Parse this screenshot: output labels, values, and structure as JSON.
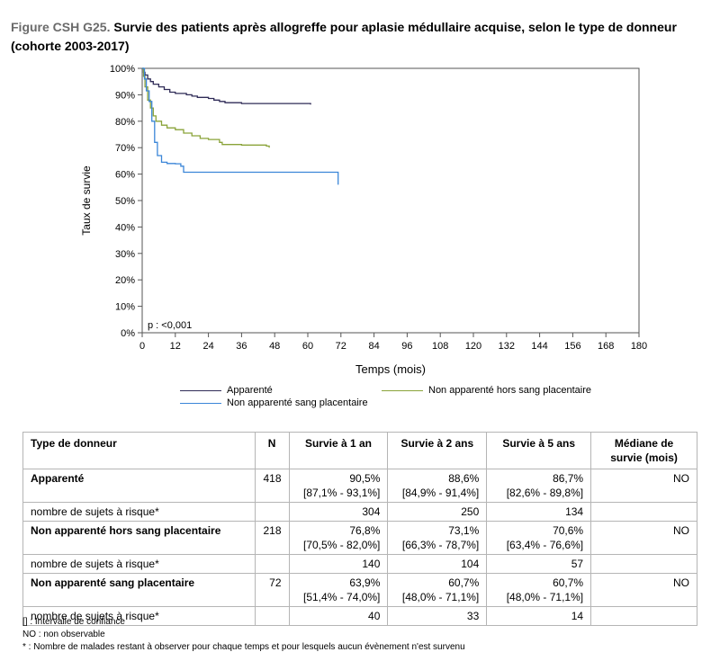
{
  "title": {
    "prefix": "Figure CSH G25.",
    "text": "Survie des patients après allogreffe pour aplasie médullaire acquise, selon le type de donneur (cohorte 2003-2017)"
  },
  "chart_data": {
    "type": "line",
    "xlabel": "Temps (mois)",
    "ylabel": "Taux de survie",
    "xlim": [
      0,
      180
    ],
    "ylim": [
      0,
      100
    ],
    "x_ticks": [
      "0",
      "12",
      "24",
      "36",
      "48",
      "60",
      "72",
      "84",
      "96",
      "108",
      "120",
      "132",
      "144",
      "156",
      "168",
      "180"
    ],
    "y_ticks": [
      "0%",
      "10%",
      "20%",
      "30%",
      "40%",
      "50%",
      "60%",
      "70%",
      "80%",
      "90%",
      "100%"
    ],
    "annotation": "p : <0,001",
    "legend_position": "bottom",
    "series": [
      {
        "name": "Apparenté",
        "color": "#2f2b57",
        "points": [
          [
            0,
            100
          ],
          [
            0.5,
            98.5
          ],
          [
            1,
            97.5
          ],
          [
            2,
            96
          ],
          [
            3,
            95
          ],
          [
            4,
            94
          ],
          [
            6,
            93
          ],
          [
            8,
            92
          ],
          [
            10,
            91
          ],
          [
            12,
            90.5
          ],
          [
            16,
            90
          ],
          [
            18,
            89.5
          ],
          [
            20,
            89
          ],
          [
            24,
            88.6
          ],
          [
            26,
            88
          ],
          [
            28,
            87.5
          ],
          [
            30,
            87
          ],
          [
            36,
            86.7
          ],
          [
            60,
            86.7
          ],
          [
            61,
            86.3
          ]
        ]
      },
      {
        "name": "Non apparenté hors sang placentaire",
        "color": "#8aa339",
        "points": [
          [
            0,
            100
          ],
          [
            0.5,
            97
          ],
          [
            1,
            93
          ],
          [
            2,
            88
          ],
          [
            3,
            85
          ],
          [
            4,
            82
          ],
          [
            5,
            80
          ],
          [
            7,
            78.5
          ],
          [
            9,
            77.5
          ],
          [
            12,
            76.8
          ],
          [
            15,
            75.5
          ],
          [
            18,
            74.5
          ],
          [
            21,
            73.5
          ],
          [
            24,
            73.1
          ],
          [
            28,
            72
          ],
          [
            29,
            71.2
          ],
          [
            36,
            71
          ],
          [
            45,
            70.6
          ],
          [
            46,
            70
          ]
        ]
      },
      {
        "name": "Non apparenté sang placentaire",
        "color": "#3b86d8",
        "points": [
          [
            0,
            100
          ],
          [
            0.8,
            96
          ],
          [
            1.5,
            91.5
          ],
          [
            2.5,
            87.5
          ],
          [
            3.5,
            80
          ],
          [
            4.5,
            72
          ],
          [
            5.5,
            67
          ],
          [
            7,
            64.5
          ],
          [
            9,
            64
          ],
          [
            12,
            63.9
          ],
          [
            14,
            63
          ],
          [
            15,
            60.7
          ],
          [
            24,
            60.7
          ],
          [
            60,
            60.7
          ],
          [
            64,
            60.7
          ],
          [
            65,
            60.7
          ],
          [
            71,
            56
          ]
        ]
      }
    ]
  },
  "table": {
    "headers": {
      "type": "Type de donneur",
      "n": "N",
      "s1": "Survie à 1 an",
      "s2": "Survie à 2 ans",
      "s5": "Survie à 5 ans",
      "median": "Médiane de survie (mois)"
    },
    "rows": [
      {
        "label": "Apparenté",
        "n": "418",
        "s1": "90,5%",
        "s1ci": "[87,1% - 93,1%]",
        "s2": "88,6%",
        "s2ci": "[84,9% - 91,4%]",
        "s5": "86,7%",
        "s5ci": "[82,6% - 89,8%]",
        "median": "NO"
      },
      {
        "label": "nombre de sujets à risque*",
        "s1": "304",
        "s2": "250",
        "s5": "134"
      },
      {
        "label": "Non apparenté hors sang placentaire",
        "n": "218",
        "s1": "76,8%",
        "s1ci": "[70,5% - 82,0%]",
        "s2": "73,1%",
        "s2ci": "[66,3% - 78,7%]",
        "s5": "70,6%",
        "s5ci": "[63,4% - 76,6%]",
        "median": "NO"
      },
      {
        "label": "nombre de sujets à risque*",
        "s1": "140",
        "s2": "104",
        "s5": "57"
      },
      {
        "label": "Non apparenté sang placentaire",
        "n": "72",
        "s1": "63,9%",
        "s1ci": "[51,4% - 74,0%]",
        "s2": "60,7%",
        "s2ci": "[48,0% - 71,1%]",
        "s5": "60,7%",
        "s5ci": "[48,0% - 71,1%]",
        "median": "NO"
      },
      {
        "label": "nombre de sujets à risque*",
        "s1": "40",
        "s2": "33",
        "s5": "14"
      }
    ]
  },
  "notes": [
    "[] : Intervalle de confiance",
    "NO : non observable",
    "* : Nombre de malades restant à observer pour chaque temps et pour lesquels aucun évènement n'est survenu"
  ]
}
